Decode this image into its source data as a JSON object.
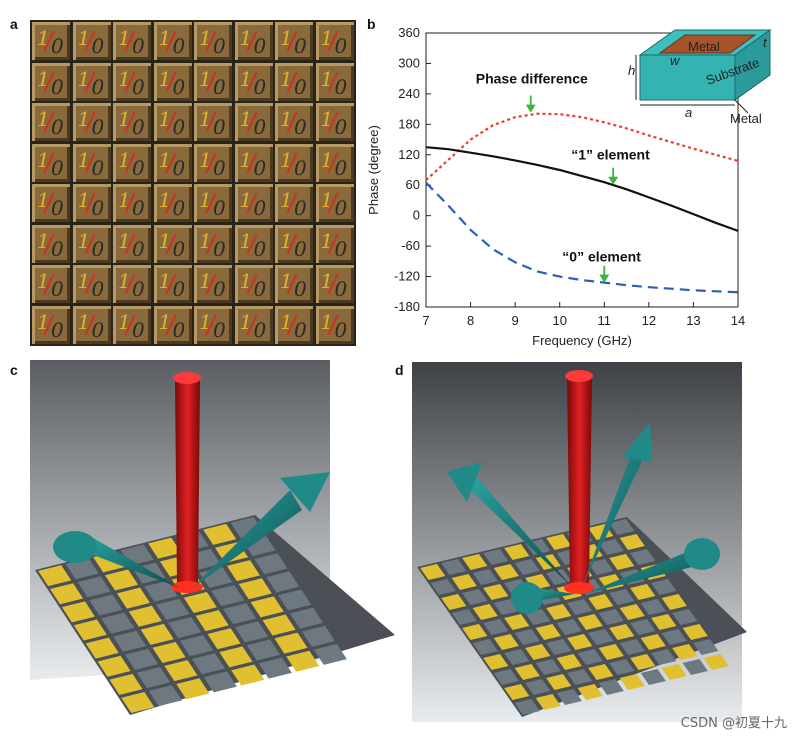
{
  "panels": {
    "a": "a",
    "b": "b",
    "c": "c",
    "d": "d"
  },
  "grid": {
    "rows": 8,
    "cols": 8,
    "cell_text_one": "1",
    "cell_text_zero": "0"
  },
  "chart_data": {
    "type": "line",
    "xlabel": "Frequency (GHz)",
    "ylabel": "Phase (degree)",
    "xlim": [
      7,
      14
    ],
    "ylim": [
      -180,
      360
    ],
    "xticks": [
      7,
      8,
      9,
      10,
      11,
      12,
      13,
      14
    ],
    "yticks": [
      -180,
      -120,
      -60,
      0,
      60,
      120,
      180,
      240,
      300,
      360
    ],
    "series": [
      {
        "name": "Phase difference",
        "color": "#e8402a",
        "style": "dotted",
        "x": [
          7,
          7.5,
          8,
          8.5,
          9,
          9.5,
          10,
          10.5,
          11,
          11.5,
          12,
          12.5,
          13,
          13.5,
          14
        ],
        "values": [
          70,
          110,
          150,
          178,
          194,
          201,
          200,
          194,
          184,
          172,
          158,
          145,
          132,
          120,
          108
        ]
      },
      {
        "name": "“1” element",
        "color": "#111111",
        "style": "solid",
        "x": [
          7,
          7.5,
          8,
          8.5,
          9,
          9.5,
          10,
          10.5,
          11,
          11.5,
          12,
          12.5,
          13,
          13.5,
          14
        ],
        "values": [
          135,
          131,
          124,
          117,
          109,
          100,
          90,
          78,
          66,
          52,
          36,
          20,
          3,
          -14,
          -30
        ]
      },
      {
        "name": "“0” element",
        "color": "#2a5fc0",
        "style": "dashed",
        "x": [
          7,
          7.5,
          8,
          8.5,
          9,
          9.5,
          10,
          10.5,
          11,
          11.5,
          12,
          12.5,
          13,
          13.5,
          14
        ],
        "values": [
          65,
          20,
          -28,
          -66,
          -92,
          -110,
          -120,
          -127,
          -132,
          -137,
          -141,
          -144,
          -147,
          -149,
          -151
        ]
      }
    ],
    "annotations": [
      {
        "text": "Phase difference",
        "at_x": 9.35,
        "at_y": 205
      },
      {
        "text": "“1” element",
        "at_x": 11.2,
        "at_y": 63
      },
      {
        "text": "“0” element",
        "at_x": 11.0,
        "at_y": -130
      }
    ]
  },
  "inset": {
    "metal_top": "Metal",
    "substrate": "Substrate",
    "metal_bottom": "Metal",
    "h": "h",
    "w": "w",
    "a": "a",
    "t": "t"
  },
  "colors": {
    "red_beam": "#d01818",
    "teal_cone": "#1f8a88",
    "gold": "#e0c030",
    "grey": "#6e7880"
  },
  "watermark": "CSDN @初夏十九"
}
